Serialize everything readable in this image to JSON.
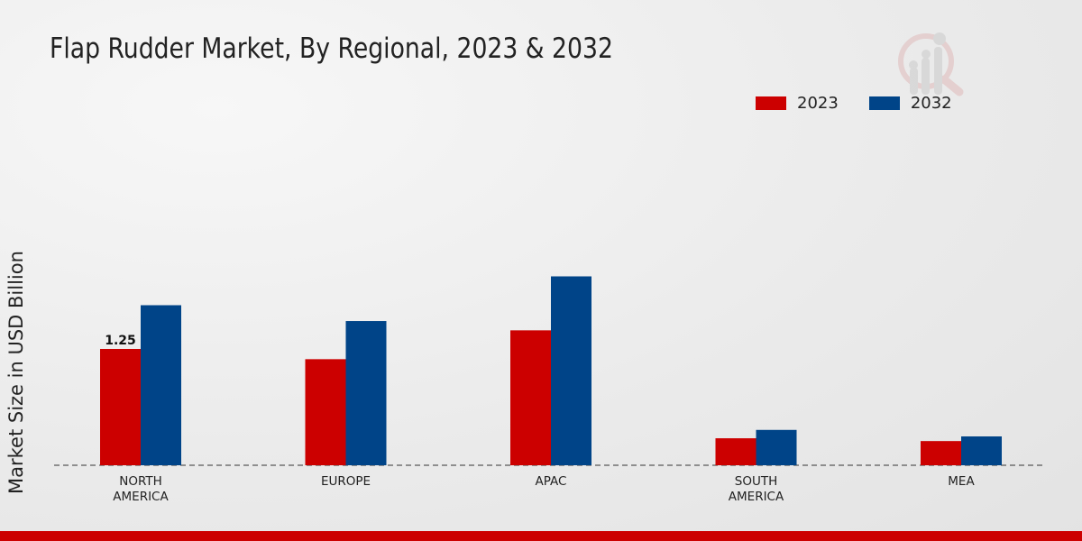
{
  "chart_data": {
    "type": "bar",
    "title": "Flap Rudder Market, By Regional, 2023 & 2032",
    "xlabel": "",
    "ylabel": "Market Size in USD Billion",
    "categories": [
      "NORTH AMERICA",
      "EUROPE",
      "APAC",
      "SOUTH AMERICA",
      "MEA"
    ],
    "category_lines": [
      [
        "NORTH",
        "AMERICA"
      ],
      [
        "EUROPE"
      ],
      [
        "APAC"
      ],
      [
        "SOUTH",
        "AMERICA"
      ],
      [
        "MEA"
      ]
    ],
    "series": [
      {
        "name": "2023",
        "color": "#cc0000",
        "values": [
          1.25,
          1.14,
          1.45,
          0.29,
          0.26
        ]
      },
      {
        "name": "2032",
        "color": "#004488",
        "values": [
          1.72,
          1.55,
          2.03,
          0.38,
          0.31
        ]
      }
    ],
    "data_labels": [
      {
        "series": 0,
        "index": 0,
        "text": "1.25"
      }
    ],
    "ylim": [
      0,
      2.4
    ],
    "grid": false,
    "legend_position": "top-right"
  }
}
